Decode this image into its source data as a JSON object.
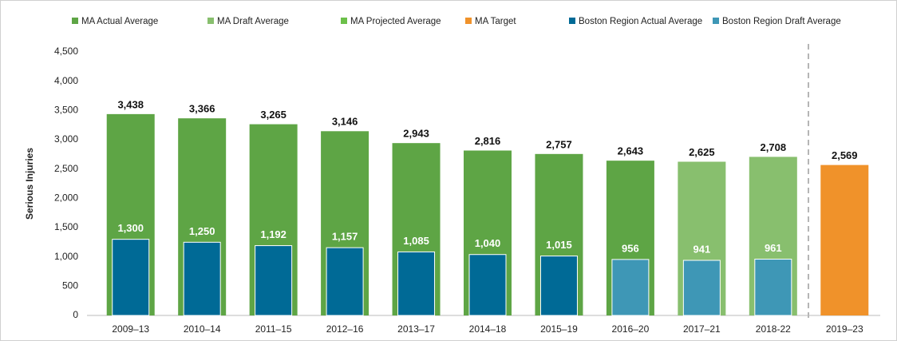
{
  "chart_data": {
    "type": "bar",
    "y_label": "Serious Injuries",
    "categories": [
      "2009–13",
      "2010–14",
      "2011–15",
      "2012–16",
      "2013–17",
      "2014–18",
      "2015–19",
      "2016–20",
      "2017–21",
      "2018-22",
      "2019–23"
    ],
    "series": [
      {
        "name": "MA Actual Average",
        "color": "#5ea545",
        "values": [
          3438,
          3366,
          3265,
          3146,
          2943,
          2816,
          2757,
          2643,
          null,
          null,
          null
        ],
        "value_labels": [
          "3,438",
          "3,366",
          "3,265",
          "3,146",
          "2,943",
          "2,816",
          "2,757",
          "2,643",
          null,
          null,
          null
        ]
      },
      {
        "name": "MA Draft Average",
        "color": "#88bf6e",
        "values": [
          null,
          null,
          null,
          null,
          null,
          null,
          null,
          null,
          2625,
          2708,
          null
        ],
        "value_labels": [
          null,
          null,
          null,
          null,
          null,
          null,
          null,
          null,
          "2,625",
          "2,708",
          null
        ]
      },
      {
        "name": "MA Projected Average",
        "color": "#6cc04a",
        "values": [
          null,
          null,
          null,
          null,
          null,
          null,
          null,
          null,
          null,
          null,
          null
        ]
      },
      {
        "name": "MA Target",
        "color": "#f0922a",
        "values": [
          null,
          null,
          null,
          null,
          null,
          null,
          null,
          null,
          null,
          null,
          2569
        ],
        "value_labels": [
          null,
          null,
          null,
          null,
          null,
          null,
          null,
          null,
          null,
          null,
          "2,569"
        ]
      },
      {
        "name": "Boston Region Actual Average",
        "color": "#006a96",
        "values": [
          1300,
          1250,
          1192,
          1157,
          1085,
          1040,
          1015,
          null,
          null,
          null,
          null
        ],
        "value_labels": [
          "1,300",
          "1,250",
          "1,192",
          "1,157",
          "1,085",
          "1,040",
          "1,015",
          null,
          null,
          null,
          null
        ]
      },
      {
        "name": "Boston Region Draft Average",
        "color": "#3e97b6",
        "values": [
          null,
          null,
          null,
          null,
          null,
          null,
          null,
          956,
          941,
          961,
          null
        ]
      }
    ],
    "ylim": [
      0,
      4500
    ],
    "yticks": [
      0,
      500,
      {
        "value": 1000,
        "label": "1,000"
      },
      {
        "value": 1500,
        "label": "1,500"
      },
      {
        "value": 2000,
        "label": "2,000"
      },
      {
        "value": 2500,
        "label": "2,500"
      },
      {
        "value": 3000,
        "label": "3,000"
      },
      {
        "value": 3500,
        "label": "3,500"
      },
      {
        "value": 4000,
        "label": "4,000"
      },
      {
        "value": 4500,
        "label": "4,500"
      }
    ],
    "grid": false
  }
}
